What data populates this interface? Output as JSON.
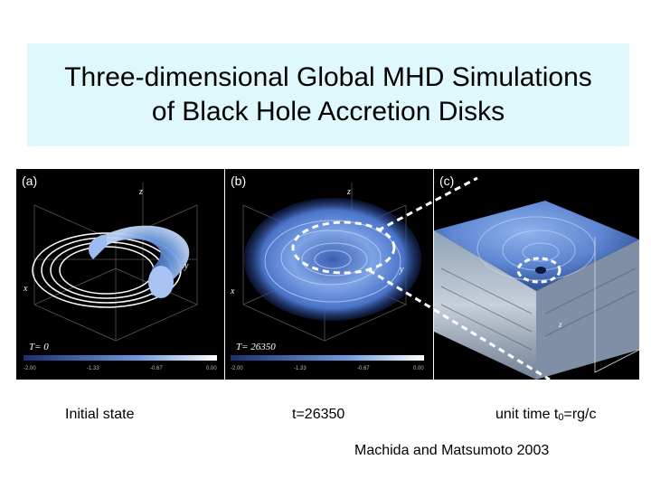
{
  "slide": {
    "title_line1": "Three-dimensional Global MHD Simulations",
    "title_line2": "of Black Hole Accretion Disks"
  },
  "figure": {
    "panel_labels": [
      "(a)",
      "(b)",
      "(c)"
    ],
    "axis_labels": {
      "z": "z",
      "x": "x",
      "y": "y"
    },
    "time_labels": [
      "T=   0",
      "T= 26350"
    ],
    "colorbar_ticks": [
      "-2.00",
      "-1.33",
      "-0.67",
      "0.00"
    ],
    "colors": {
      "title_bg": "#dff8fb",
      "panel_bg": "#000000",
      "disk": "#6f9be0",
      "dashed": "#ffffff"
    }
  },
  "captions": {
    "initial": "Initial state",
    "time": "t=26350",
    "unit_prefix": "unit time t",
    "unit_sub": "0",
    "unit_suffix": "=rg/c"
  },
  "credit": "Machida and Matsumoto 2003"
}
